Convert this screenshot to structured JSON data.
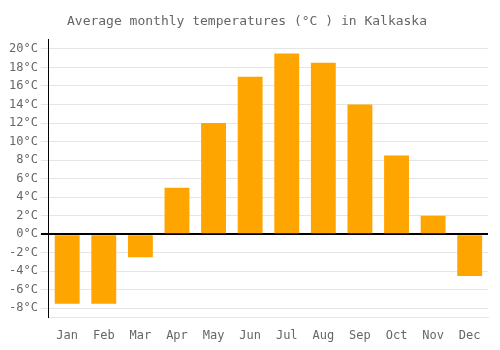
{
  "chart_data": {
    "type": "bar",
    "title": "Average monthly temperatures (°C ) in Kalkaska",
    "categories": [
      "Jan",
      "Feb",
      "Mar",
      "Apr",
      "May",
      "Jun",
      "Jul",
      "Aug",
      "Sep",
      "Oct",
      "Nov",
      "Dec"
    ],
    "values": [
      -7.5,
      -7.5,
      -2.5,
      5.0,
      12.0,
      17.0,
      19.5,
      18.5,
      14.0,
      8.5,
      2.0,
      -4.5
    ],
    "color": "#FFA500",
    "ylim": [
      -9,
      21
    ],
    "yticks": [
      {
        "value": -8,
        "label": "-8°C"
      },
      {
        "value": -6,
        "label": "-6°C"
      },
      {
        "value": -4,
        "label": "-4°C"
      },
      {
        "value": -2,
        "label": "-2°C"
      },
      {
        "value": 0,
        "label": "0°C"
      },
      {
        "value": 2,
        "label": "2°C"
      },
      {
        "value": 4,
        "label": "4°C"
      },
      {
        "value": 6,
        "label": "6°C"
      },
      {
        "value": 8,
        "label": "8°C"
      },
      {
        "value": 10,
        "label": "10°C"
      },
      {
        "value": 12,
        "label": "12°C"
      },
      {
        "value": 14,
        "label": "14°C"
      },
      {
        "value": 16,
        "label": "16°C"
      },
      {
        "value": 18,
        "label": "18°C"
      },
      {
        "value": 20,
        "label": "20°C"
      }
    ],
    "grid": true
  }
}
